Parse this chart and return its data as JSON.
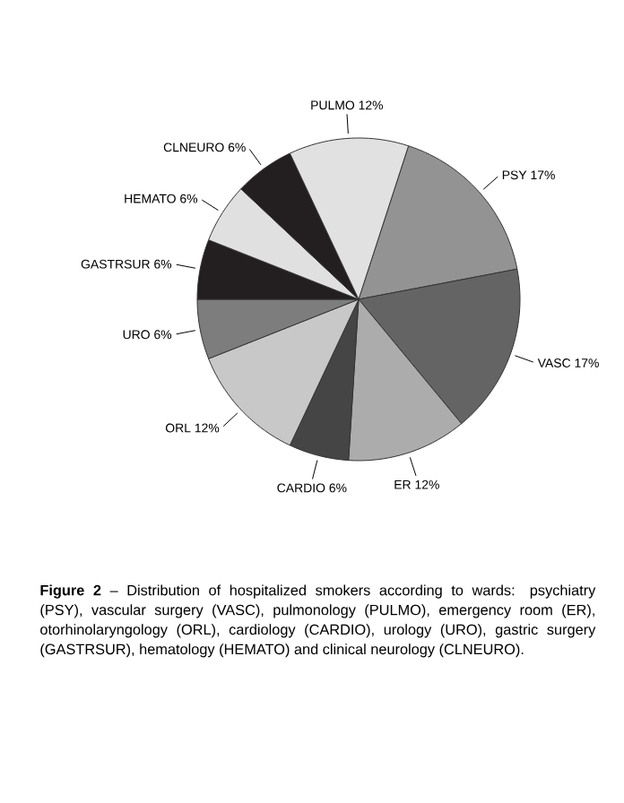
{
  "chart_data": {
    "type": "pie",
    "categories": [
      "PSY",
      "VASC",
      "ER",
      "CARDIO",
      "ORL",
      "URO",
      "GASTRSUR",
      "HEMATO",
      "CLNEURO",
      "PULMO"
    ],
    "values": [
      17,
      17,
      12,
      6,
      12,
      6,
      6,
      6,
      6,
      12
    ],
    "value_labels": [
      "17%",
      "17%",
      "12%",
      "6%",
      "12%",
      "6%",
      "6%",
      "6%",
      "6%",
      "12%"
    ],
    "colors": [
      "#939393",
      "#646464",
      "#acacac",
      "#454545",
      "#c8c8c8",
      "#7d7d7d",
      "#231f20",
      "#e0e0e0",
      "#231f20",
      "#e1e1e1"
    ],
    "annotations": [
      "**Figure 2** – Distribution of hospitalized smokers according to wards: psychiatry (PSY), vascular surgery (VASC), pulmonology (PULMO), emergency room (ER), otorhinolaryngology (ORL), cardiology (CARDIO), urology (URO), gastric surgery (GASTRSUR), hematology (HEMATO) and clinical neurology (CLNEURO)."
    ]
  }
}
